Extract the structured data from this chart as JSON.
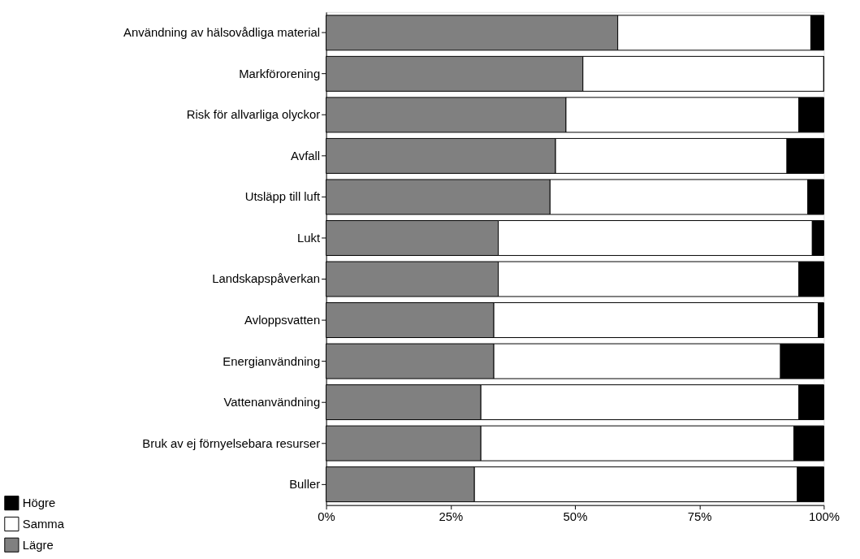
{
  "chart_data": {
    "type": "bar",
    "orientation": "horizontal",
    "stacked": true,
    "categories": [
      "Användning av hälsovådliga material",
      "Markförorening",
      "Risk för allvarliga olyckor",
      "Avfall",
      "Utsläpp till luft",
      "Lukt",
      "Landskapspåverkan",
      "Avloppsvatten",
      "Energianvändning",
      "Vattenanvändning",
      "Bruk av ej förnyelsebara resurser",
      "Buller"
    ],
    "series": [
      {
        "name": "Lägre",
        "color": "#808080",
        "values": [
          58.6,
          51.6,
          48.2,
          46.1,
          45.0,
          34.6,
          34.6,
          33.7,
          33.7,
          31.1,
          31.1,
          29.8
        ]
      },
      {
        "name": "Samma",
        "color": "#ffffff",
        "values": [
          38.8,
          48.4,
          46.8,
          46.5,
          51.8,
          63.1,
          60.4,
          65.2,
          57.6,
          63.9,
          62.9,
          64.9
        ]
      },
      {
        "name": "Högre",
        "color": "#000000",
        "values": [
          2.6,
          0,
          5.0,
          7.4,
          3.2,
          2.3,
          5.0,
          1.1,
          8.7,
          5.0,
          6.0,
          5.3
        ]
      }
    ],
    "xlim": [
      0,
      100
    ],
    "xticks": [
      {
        "value": 0,
        "label": "0%"
      },
      {
        "value": 25,
        "label": "25%"
      },
      {
        "value": 50,
        "label": "50%"
      },
      {
        "value": 75,
        "label": "75%"
      },
      {
        "value": 100,
        "label": "100%"
      }
    ],
    "grid": false,
    "legend": "bottom left"
  }
}
